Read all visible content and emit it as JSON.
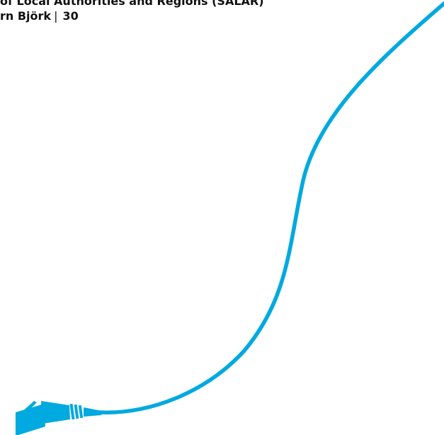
{
  "header": {
    "organization": "of Local Authorities and Regions (SALAR)",
    "author": "rn Björk",
    "separator": "|",
    "page_number": "30"
  },
  "illustration": {
    "subject": "network-cable-icon",
    "cable_color": "#00a9e0"
  }
}
